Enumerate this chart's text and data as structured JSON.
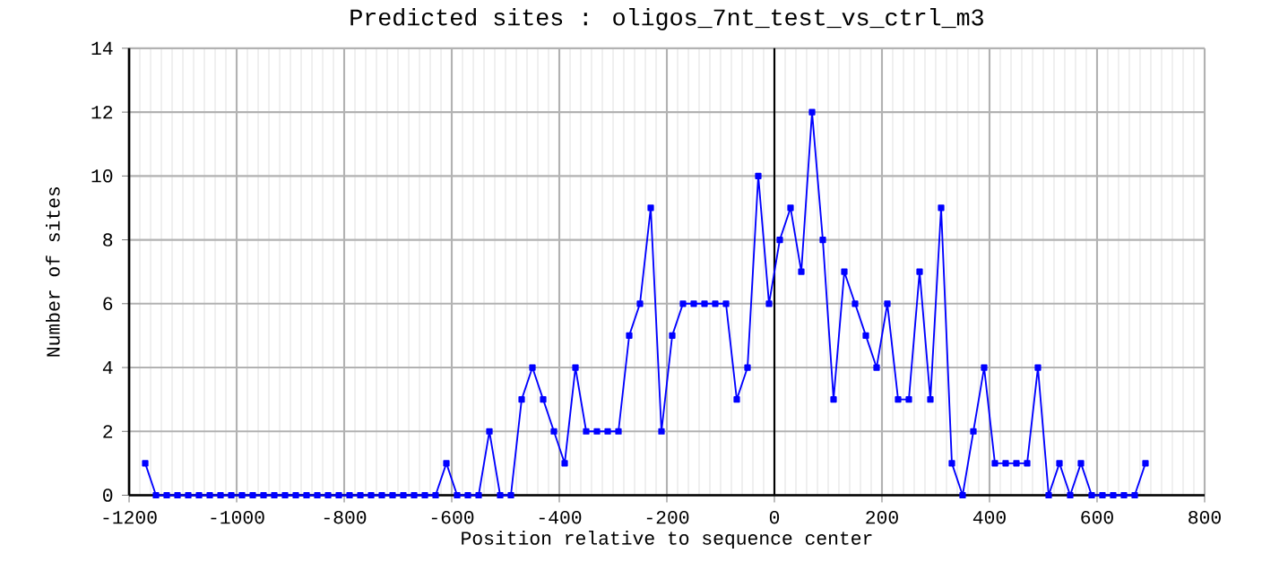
{
  "chart_data": {
    "type": "line",
    "title": "Predicted sites : oligos_7nt_test_vs_ctrl_m3",
    "xlabel": "Position relative to sequence center",
    "ylabel": "Number of sites",
    "x": [
      -1170,
      -1150,
      -1130,
      -1110,
      -1090,
      -1070,
      -1050,
      -1030,
      -1010,
      -990,
      -970,
      -950,
      -930,
      -910,
      -890,
      -870,
      -850,
      -830,
      -810,
      -790,
      -770,
      -750,
      -730,
      -710,
      -690,
      -670,
      -650,
      -630,
      -610,
      -590,
      -570,
      -550,
      -530,
      -510,
      -490,
      -470,
      -450,
      -430,
      -410,
      -390,
      -370,
      -350,
      -330,
      -310,
      -290,
      -270,
      -250,
      -230,
      -210,
      -190,
      -170,
      -150,
      -130,
      -110,
      -90,
      -70,
      -50,
      -30,
      -10,
      10,
      30,
      50,
      70,
      90,
      110,
      130,
      150,
      170,
      190,
      210,
      230,
      250,
      270,
      290,
      310,
      330,
      350,
      370,
      390,
      410,
      430,
      450,
      470,
      490,
      510,
      530,
      550,
      570,
      590,
      610,
      630,
      650,
      670,
      690
    ],
    "series": [
      {
        "color": "#0000ff",
        "values": [
          1,
          0,
          0,
          0,
          0,
          0,
          0,
          0,
          0,
          0,
          0,
          0,
          0,
          0,
          0,
          0,
          0,
          0,
          0,
          0,
          0,
          0,
          0,
          0,
          0,
          0,
          0,
          0,
          1,
          0,
          0,
          0,
          2,
          0,
          0,
          3,
          4,
          3,
          2,
          1,
          4,
          2,
          2,
          2,
          2,
          5,
          6,
          9,
          2,
          5,
          6,
          6,
          6,
          6,
          6,
          3,
          4,
          10,
          6,
          8,
          9,
          7,
          12,
          8,
          3,
          7,
          6,
          5,
          4,
          6,
          3,
          3,
          7,
          3,
          9,
          1,
          0,
          2,
          4,
          1,
          1,
          1,
          1,
          4,
          0,
          1,
          0,
          1,
          0,
          0,
          0,
          0,
          0,
          1
        ]
      }
    ],
    "xlim": [
      -1200,
      800
    ],
    "ylim": [
      0,
      14
    ],
    "xticks": [
      -1200,
      -1000,
      -800,
      -600,
      -400,
      -200,
      0,
      200,
      400,
      600,
      800
    ],
    "yticks": [
      0,
      2,
      4,
      6,
      8,
      10,
      12,
      14
    ],
    "grid": true,
    "marker": "square",
    "line_style": "solid",
    "ref_lines": [
      {
        "axis": "x",
        "value": 0,
        "color": "#000000"
      }
    ]
  }
}
